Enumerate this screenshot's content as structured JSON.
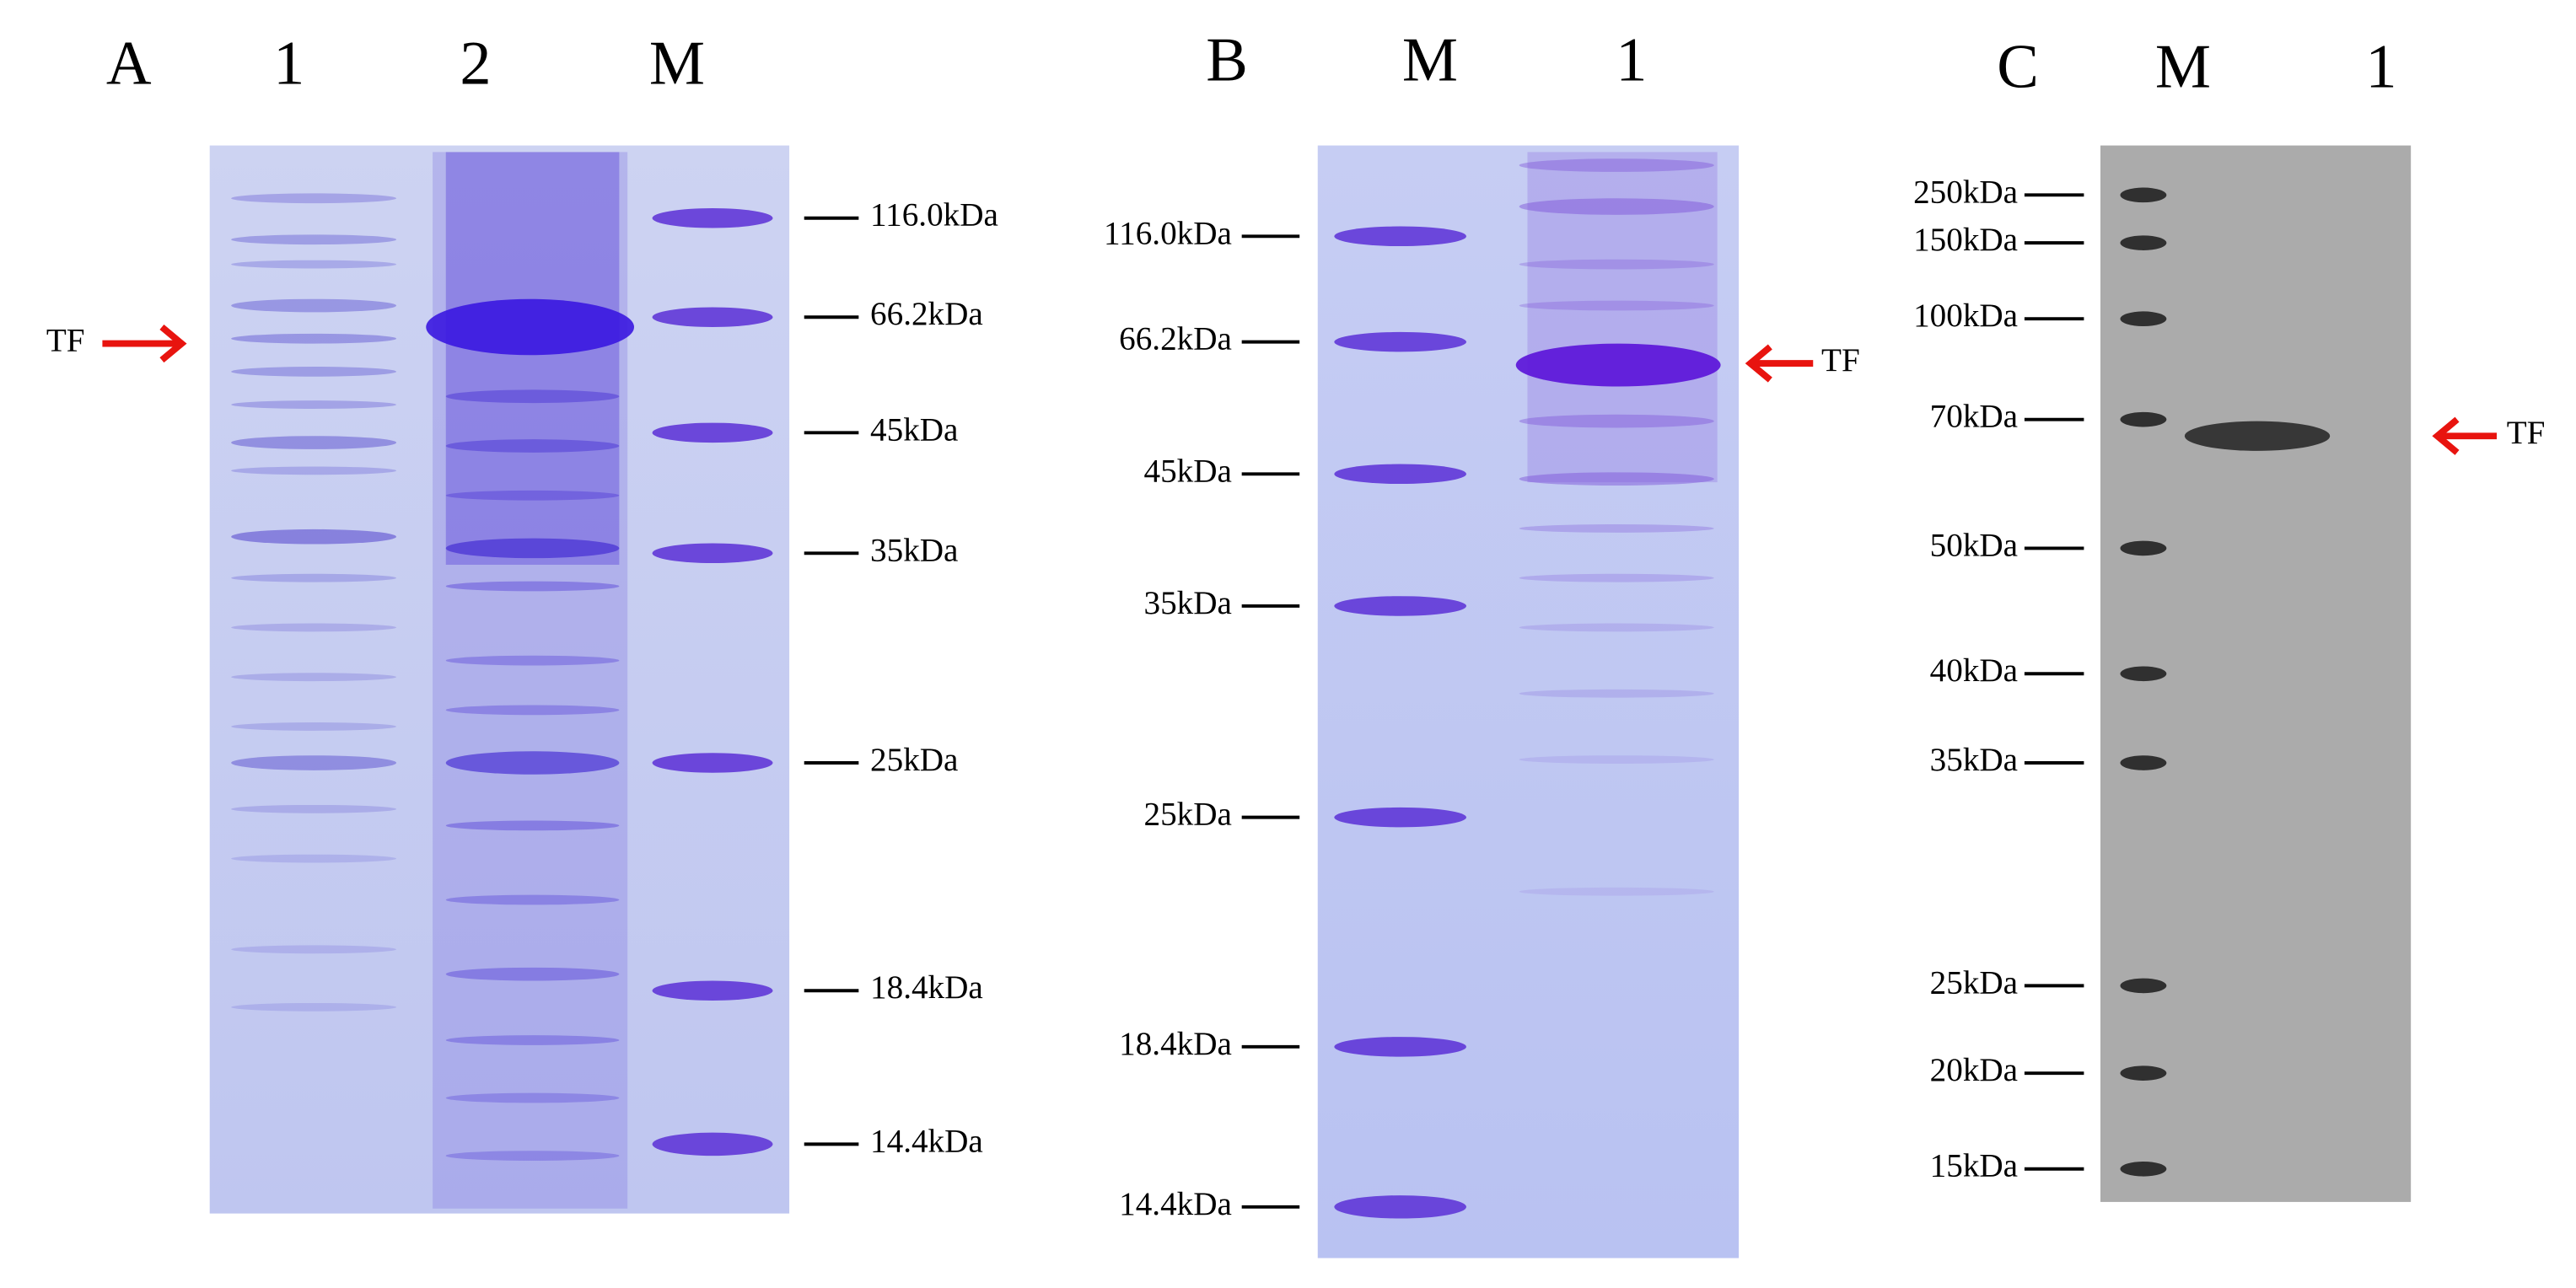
{
  "panels": [
    {
      "label": "A",
      "lanes": [
        "1",
        "2",
        "M"
      ],
      "markers": [
        "116.0kDa",
        "66.2kDa",
        "45kDa",
        "35kDa",
        "25kDa",
        "18.4kDa",
        "14.4kDa"
      ],
      "target": "TF"
    },
    {
      "label": "B",
      "lanes": [
        "M",
        "1"
      ],
      "markers": [
        "116.0kDa",
        "66.2kDa",
        "45kDa",
        "35kDa",
        "25kDa",
        "18.4kDa",
        "14.4kDa"
      ],
      "target": "TF"
    },
    {
      "label": "C",
      "lanes": [
        "M",
        "1"
      ],
      "markers": [
        "250kDa",
        "150kDa",
        "100kDa",
        "70kDa",
        "50kDa",
        "40kDa",
        "35kDa",
        "25kDa",
        "20kDa",
        "15kDa"
      ],
      "target": "TF"
    }
  ]
}
